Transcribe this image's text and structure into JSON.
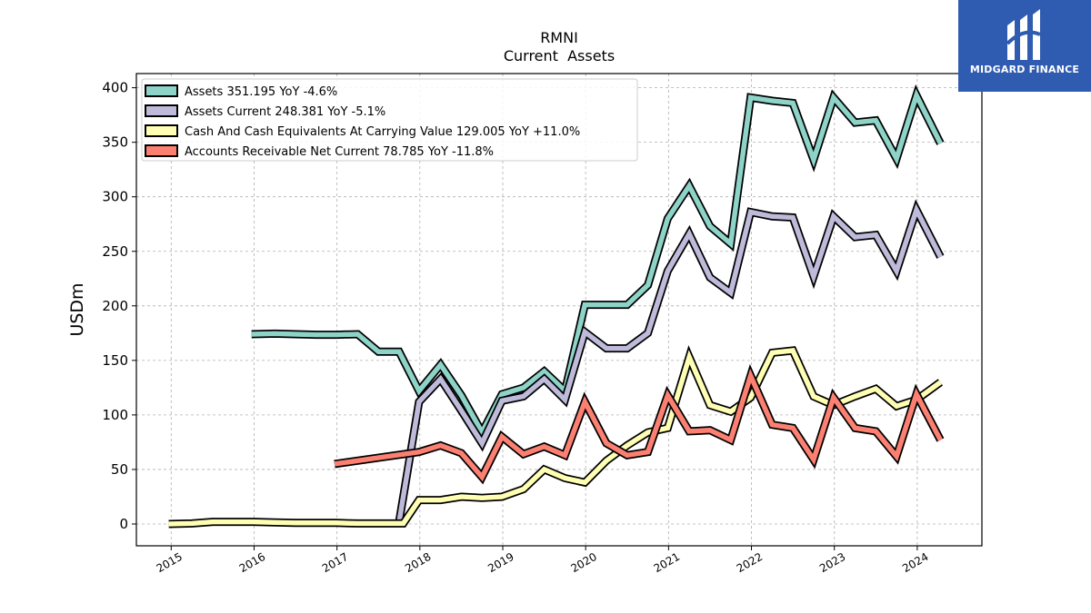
{
  "chart_data": {
    "type": "line",
    "title": "RMNI",
    "subtitle": "Current  Assets",
    "ylabel": "USDm",
    "xlabel": "",
    "ylim": [
      -20,
      413
    ],
    "xlim": [
      2014.58,
      2024.78
    ],
    "yticks": [
      0,
      50,
      100,
      150,
      200,
      250,
      300,
      350,
      400
    ],
    "xticks": [
      2015,
      2016,
      2017,
      2018,
      2019,
      2020,
      2021,
      2022,
      2023,
      2024
    ],
    "xtick_labels": [
      "2015",
      "2016",
      "2017",
      "2018",
      "2019",
      "2020",
      "2021",
      "2022",
      "2023",
      "2024"
    ],
    "grid": true,
    "legend_position": "top-left",
    "series": [
      {
        "name": "Assets  351.195 YoY -4.6%",
        "color": "#8dd3c7",
        "points": [
          [
            2015.97,
            174
          ],
          [
            2016.25,
            174.5
          ],
          [
            2016.5,
            174
          ],
          [
            2016.75,
            173.5
          ],
          [
            2017.0,
            173.5
          ],
          [
            2017.25,
            174
          ],
          [
            2017.5,
            158
          ],
          [
            2017.75,
            158
          ],
          [
            2017.99,
            122
          ],
          [
            2018.25,
            146
          ],
          [
            2018.5,
            118
          ],
          [
            2018.75,
            84
          ],
          [
            2018.99,
            119
          ],
          [
            2019.25,
            125
          ],
          [
            2019.5,
            140
          ],
          [
            2019.75,
            122
          ],
          [
            2019.99,
            201
          ],
          [
            2020.25,
            201
          ],
          [
            2020.5,
            201
          ],
          [
            2020.75,
            219
          ],
          [
            2020.99,
            280
          ],
          [
            2021.25,
            310
          ],
          [
            2021.5,
            273
          ],
          [
            2021.75,
            257
          ],
          [
            2021.99,
            391
          ],
          [
            2022.25,
            388
          ],
          [
            2022.5,
            386
          ],
          [
            2022.75,
            334
          ],
          [
            2022.99,
            391
          ],
          [
            2023.25,
            368
          ],
          [
            2023.5,
            370
          ],
          [
            2023.75,
            335
          ],
          [
            2023.99,
            393
          ],
          [
            2024.28,
            349
          ]
        ]
      },
      {
        "name": "Assets Current  248.381 YoY -5.1%",
        "color": "#bebada",
        "points": [
          [
            2017.75,
            2
          ],
          [
            2017.99,
            112
          ],
          [
            2018.25,
            133
          ],
          [
            2018.5,
            104
          ],
          [
            2018.75,
            74
          ],
          [
            2018.99,
            113
          ],
          [
            2019.25,
            117
          ],
          [
            2019.5,
            133
          ],
          [
            2019.75,
            114
          ],
          [
            2019.99,
            176
          ],
          [
            2020.25,
            161
          ],
          [
            2020.5,
            161
          ],
          [
            2020.75,
            175
          ],
          [
            2020.99,
            232
          ],
          [
            2021.25,
            266
          ],
          [
            2021.5,
            226
          ],
          [
            2021.75,
            212
          ],
          [
            2021.99,
            286
          ],
          [
            2022.25,
            282
          ],
          [
            2022.5,
            281
          ],
          [
            2022.75,
            227
          ],
          [
            2022.99,
            282
          ],
          [
            2023.25,
            263
          ],
          [
            2023.5,
            265
          ],
          [
            2023.75,
            232
          ],
          [
            2023.99,
            288
          ],
          [
            2024.28,
            245
          ]
        ]
      },
      {
        "name": "Cash And Cash Equivalents At Carrying Value  129.005 YoY +11.0%",
        "color": "#ffffb3",
        "points": [
          [
            2014.97,
            0
          ],
          [
            2015.25,
            0.5
          ],
          [
            2015.5,
            2
          ],
          [
            2015.75,
            2
          ],
          [
            2015.99,
            2
          ],
          [
            2016.25,
            1.5
          ],
          [
            2016.5,
            1
          ],
          [
            2016.75,
            1
          ],
          [
            2016.99,
            1
          ],
          [
            2017.25,
            0.5
          ],
          [
            2017.5,
            0.5
          ],
          [
            2017.8,
            0.5
          ],
          [
            2017.99,
            22
          ],
          [
            2018.25,
            22
          ],
          [
            2018.5,
            25
          ],
          [
            2018.75,
            24
          ],
          [
            2018.99,
            25
          ],
          [
            2019.25,
            32
          ],
          [
            2019.5,
            50
          ],
          [
            2019.75,
            42
          ],
          [
            2019.99,
            38
          ],
          [
            2020.25,
            58
          ],
          [
            2020.5,
            72
          ],
          [
            2020.75,
            84
          ],
          [
            2020.99,
            88
          ],
          [
            2021.25,
            153
          ],
          [
            2021.5,
            109
          ],
          [
            2021.75,
            103
          ],
          [
            2021.99,
            116
          ],
          [
            2022.25,
            157
          ],
          [
            2022.5,
            159
          ],
          [
            2022.75,
            117
          ],
          [
            2022.99,
            109
          ],
          [
            2023.25,
            117
          ],
          [
            2023.5,
            124
          ],
          [
            2023.75,
            108
          ],
          [
            2023.99,
            114
          ],
          [
            2024.28,
            130
          ]
        ]
      },
      {
        "name": "Accounts Receivable Net Current  78.785 YoY -11.8%",
        "color": "#fb8072",
        "points": [
          [
            2016.97,
            55
          ],
          [
            2017.99,
            66
          ],
          [
            2018.25,
            72
          ],
          [
            2018.5,
            65
          ],
          [
            2018.75,
            43
          ],
          [
            2018.99,
            80
          ],
          [
            2019.25,
            64
          ],
          [
            2019.5,
            71
          ],
          [
            2019.75,
            63
          ],
          [
            2019.99,
            112
          ],
          [
            2020.25,
            74
          ],
          [
            2020.5,
            63
          ],
          [
            2020.75,
            66
          ],
          [
            2020.99,
            118
          ],
          [
            2021.25,
            85
          ],
          [
            2021.5,
            86
          ],
          [
            2021.75,
            77
          ],
          [
            2021.99,
            136
          ],
          [
            2022.25,
            91
          ],
          [
            2022.5,
            88
          ],
          [
            2022.75,
            59
          ],
          [
            2022.99,
            116
          ],
          [
            2023.25,
            88
          ],
          [
            2023.5,
            85
          ],
          [
            2023.75,
            62
          ],
          [
            2023.99,
            119
          ],
          [
            2024.28,
            77
          ]
        ]
      }
    ]
  },
  "logo": {
    "text": "MIDGARD FINANCE",
    "background": "#2f5bb0"
  }
}
